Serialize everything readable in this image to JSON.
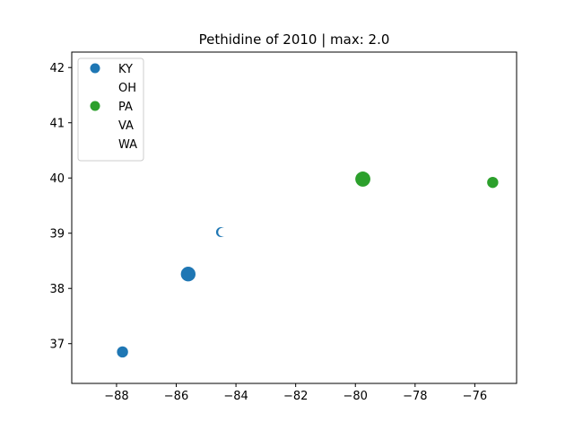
{
  "chart_data": {
    "type": "scatter",
    "title": "Pethidine of 2010 | max: 2.0",
    "xlabel": "",
    "ylabel": "",
    "xlim": [
      -89.5,
      -74.6
    ],
    "ylim": [
      36.28,
      42.28
    ],
    "xticks": [
      -88,
      -86,
      -84,
      -82,
      -80,
      -78,
      -76
    ],
    "xtick_labels": [
      "−88",
      "−86",
      "−84",
      "−82",
      "−80",
      "−78",
      "−76"
    ],
    "yticks": [
      37,
      38,
      39,
      40,
      41,
      42
    ],
    "ytick_labels": [
      "37",
      "38",
      "39",
      "40",
      "41",
      "42"
    ],
    "grid": false,
    "legend_position": "upper-left",
    "series": [
      {
        "name": "KY",
        "color": "#1f77b4",
        "points": [
          {
            "x": -87.8,
            "y": 36.85,
            "size": 1.0
          },
          {
            "x": -85.6,
            "y": 38.26,
            "size": 1.9
          },
          {
            "x": -84.5,
            "y": 39.02,
            "size": 0.7
          }
        ]
      },
      {
        "name": "OH",
        "color": "#ffffff",
        "points": [
          {
            "x": -84.45,
            "y": 39.02,
            "size": 0.4
          }
        ]
      },
      {
        "name": "PA",
        "color": "#2ca02c",
        "points": [
          {
            "x": -79.75,
            "y": 39.98,
            "size": 2.0
          },
          {
            "x": -75.4,
            "y": 39.92,
            "size": 1.0
          }
        ]
      },
      {
        "name": "VA",
        "color": "#ffffff",
        "points": []
      },
      {
        "name": "WA",
        "color": "#ffffff",
        "points": []
      }
    ]
  }
}
